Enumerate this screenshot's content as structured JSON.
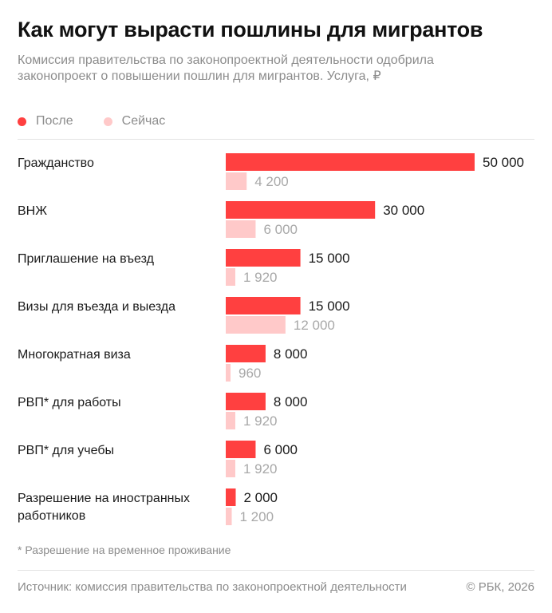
{
  "header": {
    "title": "Как могут вырасти пошлины для мигрантов",
    "subtitle": "Комиссия правительства по законопроектной деятельности одобрила законопроект о повышении пошлин для мигрантов. Услуга, ₽"
  },
  "footer": {
    "footnote": "* Разрешение на временное проживание",
    "source": "Источник: комиссия правительства по законопроектной деятельности",
    "copyright": "© РБК, 2026"
  },
  "colors": {
    "after": "#ff4040",
    "now": "#ffc9c9",
    "label_after": "#1a1a1a",
    "label_now": "#a8a8a8"
  },
  "chart_data": {
    "type": "bar",
    "orientation": "horizontal",
    "categories": [
      [
        "Гражданство"
      ],
      [
        "ВНЖ"
      ],
      [
        "Приглашение на въезд"
      ],
      [
        "Визы для въезда и выезда"
      ],
      [
        "Многократная виза"
      ],
      [
        "РВП* для работы"
      ],
      [
        "РВП* для учебы"
      ],
      [
        "Разрешение на иностранных",
        "работников"
      ]
    ],
    "series": [
      {
        "name": "После",
        "values": [
          50000,
          30000,
          15000,
          15000,
          8000,
          8000,
          6000,
          2000
        ],
        "labels": [
          "50 000",
          "30 000",
          "15 000",
          "15 000",
          "8 000",
          "8 000",
          "6 000",
          "2 000"
        ]
      },
      {
        "name": "Сейчас",
        "values": [
          4200,
          6000,
          1920,
          12000,
          960,
          1920,
          1920,
          1200
        ],
        "labels": [
          "4 200",
          "6 000",
          "1 920",
          "12 000",
          "960",
          "1 920",
          "1 920",
          "1 200"
        ]
      }
    ],
    "xlim": [
      0,
      50000
    ],
    "legend": "top-left",
    "grid": false
  }
}
